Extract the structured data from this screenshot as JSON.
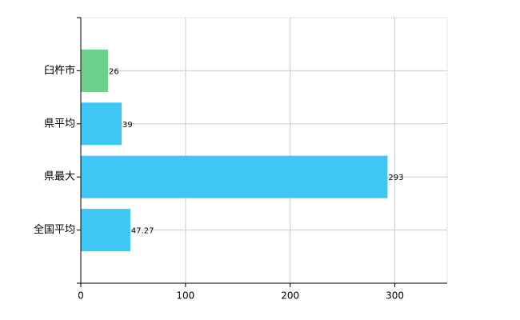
{
  "chart_data": {
    "type": "bar",
    "orientation": "horizontal",
    "categories": [
      "臼杵市",
      "県平均",
      "県最大",
      "全国平均"
    ],
    "values": [
      26,
      39,
      293,
      47.27
    ],
    "colors": [
      "#6dd08a",
      "#3ec6f5",
      "#3ec6f5",
      "#3ec6f5"
    ],
    "xlim": [
      0,
      350
    ],
    "xticks": [
      0,
      100,
      200,
      300
    ],
    "grid": true
  }
}
